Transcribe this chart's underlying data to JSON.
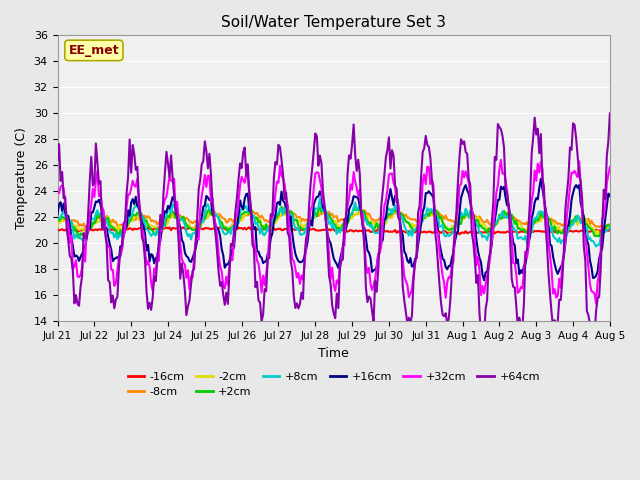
{
  "title": "Soil/Water Temperature Set 3",
  "xlabel": "Time",
  "ylabel": "Temperature (C)",
  "ylim": [
    14,
    36
  ],
  "yticks": [
    14,
    16,
    18,
    20,
    22,
    24,
    26,
    28,
    30,
    32,
    34,
    36
  ],
  "x_labels": [
    "Jul 21",
    "Jul 22",
    "Jul 23",
    "Jul 24",
    "Jul 25",
    "Jul 26",
    "Jul 27",
    "Jul 28",
    "Jul 29",
    "Jul 30",
    "Jul 31",
    "Aug 1",
    "Aug 2",
    "Aug 3",
    "Aug 4",
    "Aug 5"
  ],
  "annotation_text": "EE_met",
  "annotation_bg": "#ffffaa",
  "annotation_border": "#aaaa00",
  "annotation_text_color": "#880000",
  "fig_bg": "#e8e8e8",
  "plot_bg": "#f0f0f0",
  "grid_color": "white",
  "lines": {
    "-16cm": {
      "color": "#ff0000",
      "lw": 1.5,
      "zorder": 3
    },
    "-8cm": {
      "color": "#ff8800",
      "lw": 1.5,
      "zorder": 3
    },
    "-2cm": {
      "color": "#dddd00",
      "lw": 1.5,
      "zorder": 3
    },
    "+2cm": {
      "color": "#00cc00",
      "lw": 1.5,
      "zorder": 3
    },
    "+8cm": {
      "color": "#00cccc",
      "lw": 1.5,
      "zorder": 3
    },
    "+16cm": {
      "color": "#000088",
      "lw": 1.5,
      "zorder": 3
    },
    "+32cm": {
      "color": "#ff00ff",
      "lw": 1.5,
      "zorder": 3
    },
    "+64cm": {
      "color": "#8800aa",
      "lw": 1.5,
      "zorder": 3
    }
  },
  "legend_order": [
    "-16cm",
    "-8cm",
    "-2cm",
    "+2cm",
    "+8cm",
    "+16cm",
    "+32cm",
    "+64cm"
  ],
  "legend_ncol": 6
}
